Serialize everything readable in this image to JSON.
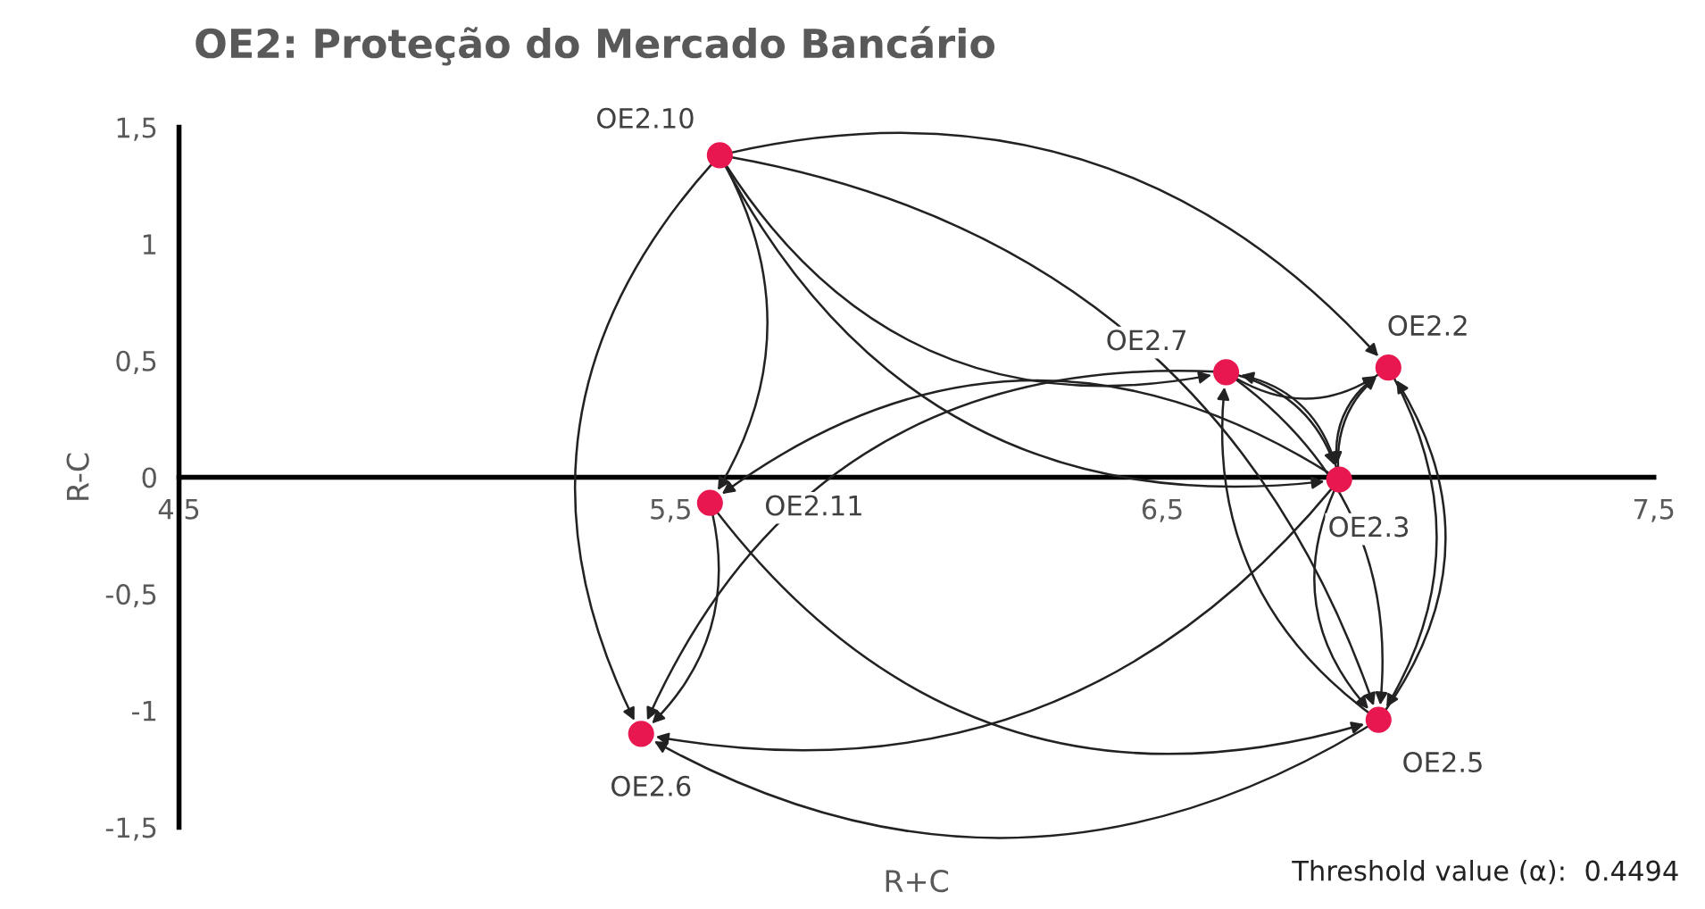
{
  "chart_data": {
    "type": "scatter",
    "title": "OE2: Proteção do Mercado Bancário",
    "xlabel": "R+C",
    "ylabel": "R-C",
    "series": [
      {
        "color": "#e8174f",
        "x": [
          5.6,
          6.63,
          6.96,
          6.86,
          5.58,
          5.44,
          6.94
        ],
        "values": [
          1.38,
          0.45,
          0.47,
          -0.01,
          -0.11,
          -1.1,
          -1.04
        ]
      }
    ],
    "annotations": [
      {
        "text": "OE2.10",
        "x": 5.6,
        "y": 1.38
      },
      {
        "text": "OE2.7",
        "x": 6.63,
        "y": 0.45
      },
      {
        "text": "OE2.2",
        "x": 6.96,
        "y": 0.47
      },
      {
        "text": "OE2.3",
        "x": 6.86,
        "y": -0.01
      },
      {
        "text": "OE2.11",
        "x": 5.58,
        "y": -0.11
      },
      {
        "text": "OE2.6",
        "x": 5.44,
        "y": -1.1
      },
      {
        "text": "OE2.5",
        "x": 6.94,
        "y": -1.04
      },
      "Threshold value (α):  0.4494"
    ],
    "xlim": [
      4.5,
      7.5
    ],
    "xticks": [
      {
        "value": 4.5,
        "label": "4,5"
      },
      {
        "value": 5.5,
        "label": "5,5"
      },
      {
        "value": 6.5,
        "label": "6,5"
      },
      {
        "value": 7.5,
        "label": "7,5"
      }
    ],
    "ylim": [
      -1.5,
      1.5
    ],
    "yticks": [
      {
        "value": -1.5,
        "label": "-1,5"
      },
      {
        "value": -1,
        "label": "-1"
      },
      {
        "value": -0.5,
        "label": "-0,5"
      },
      {
        "value": 0,
        "label": "0"
      },
      {
        "value": 0.5,
        "label": "0,5"
      },
      {
        "value": 1,
        "label": "1"
      },
      {
        "value": 1.5,
        "label": "1,5"
      }
    ],
    "grid": false,
    "legend": false,
    "marker": "circle"
  }
}
